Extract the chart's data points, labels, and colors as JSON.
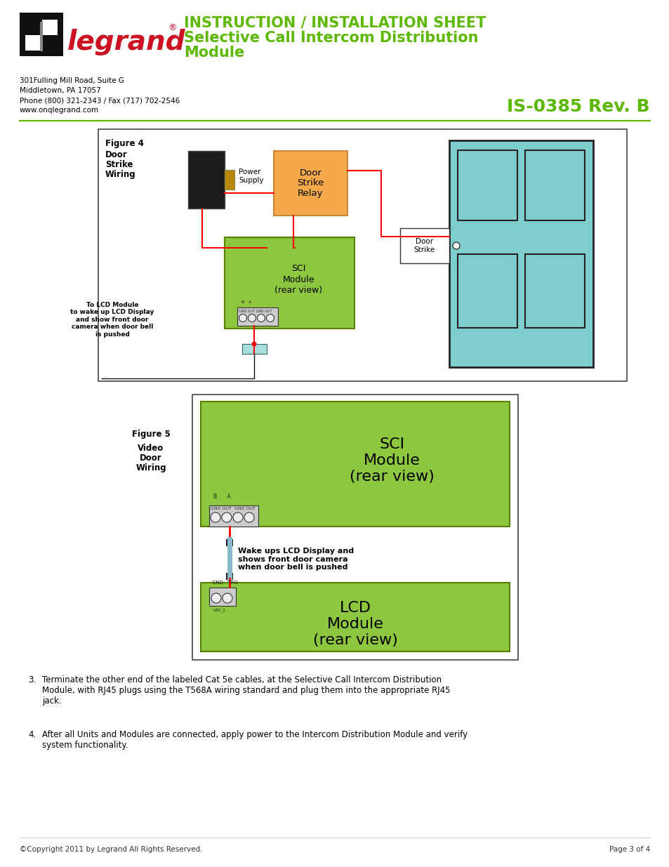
{
  "page_bg": "#ffffff",
  "green_color": "#5cb800",
  "module_green": "#8dc63f",
  "teal_door": "#7ecece",
  "orange_relay": "#f5a94a",
  "red_wire": "#ff0000",
  "black": "#000000",
  "title_line1": "INSTRUCTION / INSTALLATION SHEET",
  "title_line2": "Selective Call Intercom Distribution",
  "title_line3": "Module",
  "rev_text": "IS-0385 Rev. B",
  "address1": "301Fulling Mill Road, Suite G",
  "address2": "Middletown, PA 17057",
  "address3": "Phone (800) 321-2343 / Fax (717) 702-2546",
  "address4": "www.onqlegrand.com",
  "footer_left": "©Copyright 2011 by Legrand All Rights Reserved.",
  "footer_right": "Page 3 of 4",
  "item3_text": "Terminate the other end of the labeled Cat 5e cables, at the Selective Call Intercom Distribution\nModule, with RJ45 plugs using the T568A wiring standard and plug them into the appropriate RJ45\njack.",
  "item4_text": "After all Units and Modules are connected, apply power to the Intercom Distribution Module and verify\nsystem functionality."
}
